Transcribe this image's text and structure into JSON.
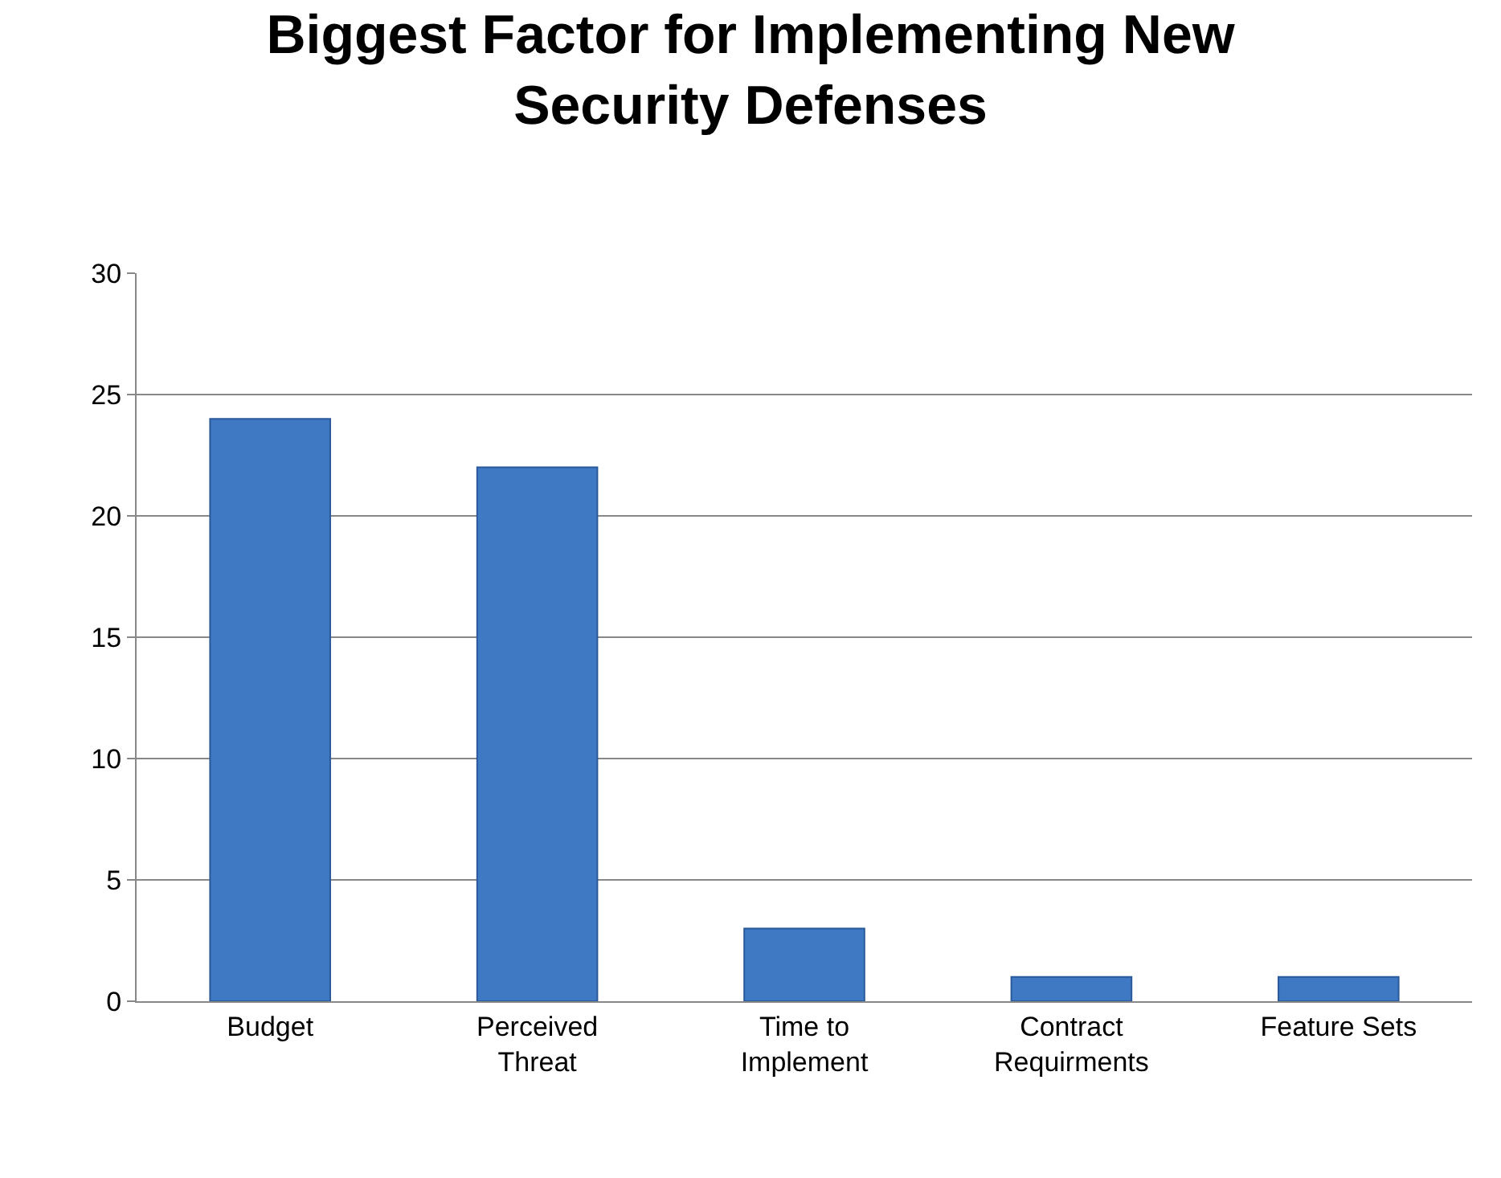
{
  "chart_data": {
    "type": "bar",
    "title": "Biggest Factor for Implementing New Security Defenses",
    "categories": [
      "Budget",
      "Perceived Threat",
      "Time to Implement",
      "Contract Requirments",
      "Feature Sets"
    ],
    "values": [
      24,
      22,
      3,
      1,
      1
    ],
    "color": "#3f78c3",
    "ylim": [
      0,
      30
    ],
    "yticks": [
      0,
      5,
      10,
      15,
      20,
      25,
      30
    ],
    "grid": "y"
  }
}
